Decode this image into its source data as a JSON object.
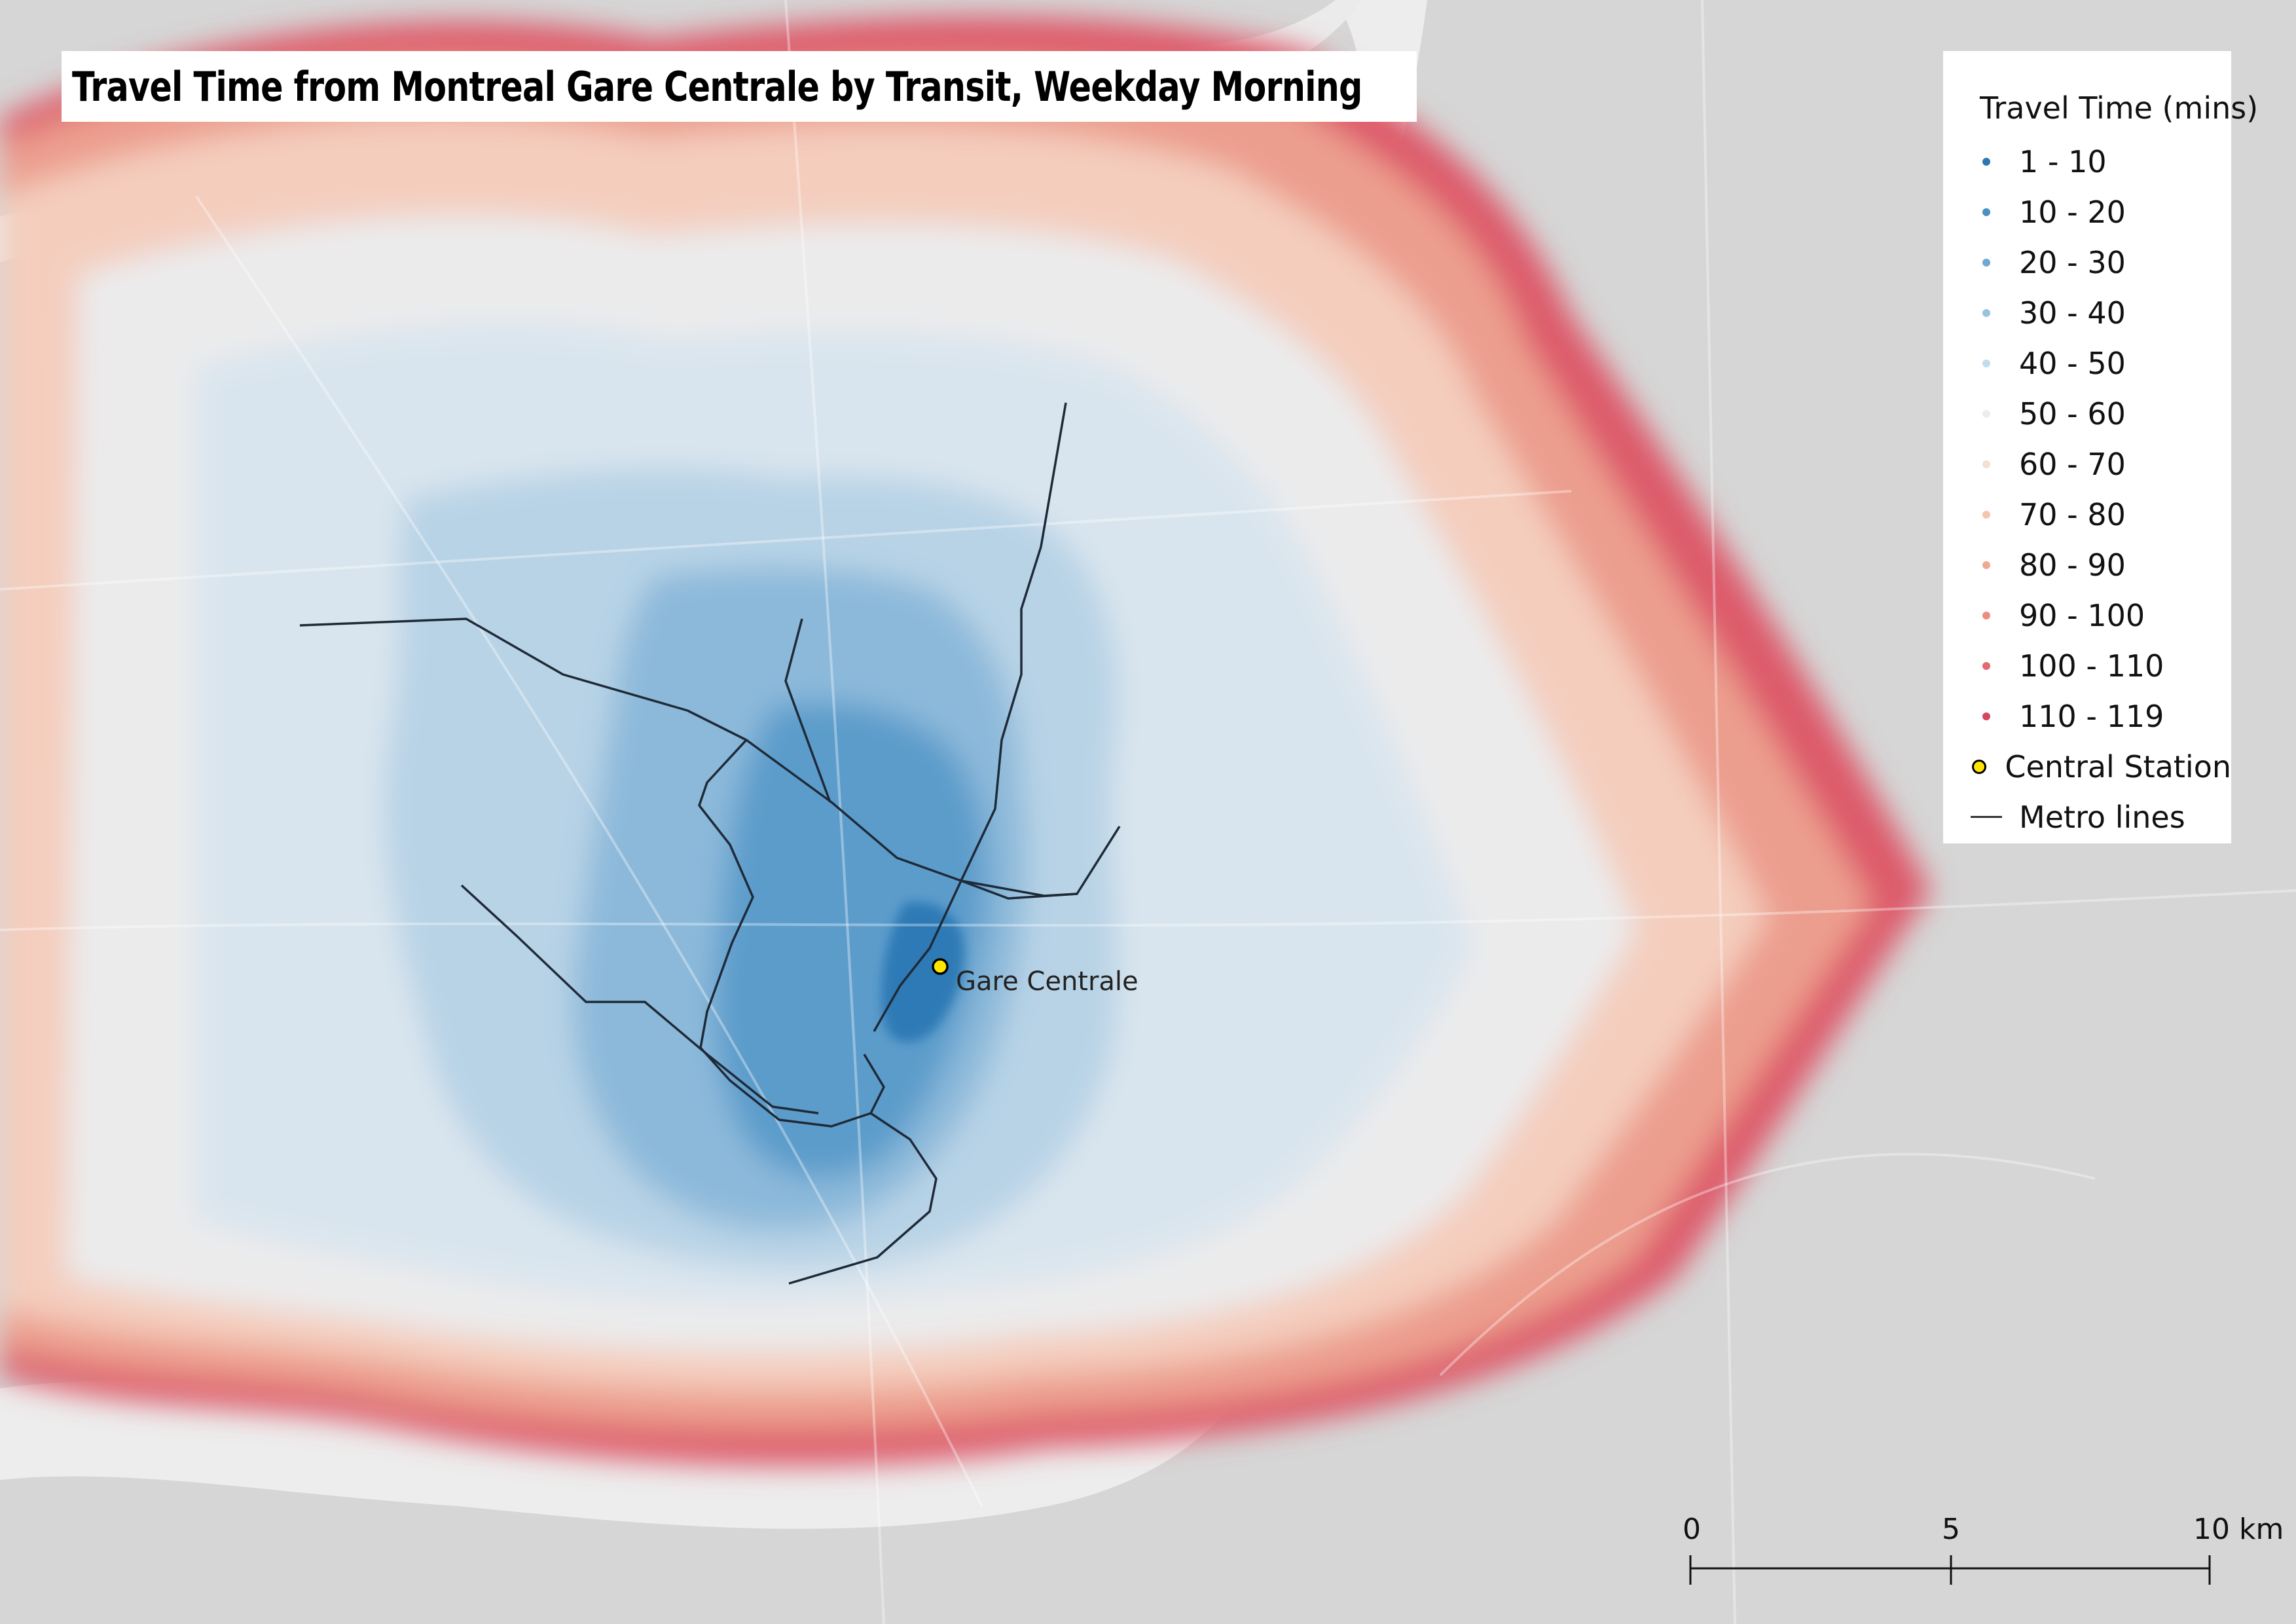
{
  "title": "Travel Time from Montreal Gare Centrale by Transit, Weekday Morning",
  "legend": {
    "title": "Travel Time (mins)",
    "items": [
      {
        "label": "1 - 10",
        "color": "#2b78b4"
      },
      {
        "label": "10 - 20",
        "color": "#4a90c2"
      },
      {
        "label": "20 - 30",
        "color": "#6fa9d1"
      },
      {
        "label": "30 - 40",
        "color": "#98c3df"
      },
      {
        "label": "40 - 50",
        "color": "#c3dcec"
      },
      {
        "label": "50 - 60",
        "color": "#eaeef1"
      },
      {
        "label": "60 - 70",
        "color": "#f6ded5"
      },
      {
        "label": "70 - 80",
        "color": "#f4c6b2"
      },
      {
        "label": "80 - 90",
        "color": "#f0aa93"
      },
      {
        "label": "90 - 100",
        "color": "#ea8f80"
      },
      {
        "label": "100 - 110",
        "color": "#e06b70"
      },
      {
        "label": "110 - 119",
        "color": "#d44660"
      }
    ],
    "station_label": "Central Station",
    "metro_label": "Metro lines"
  },
  "station": {
    "name": "Gare Centrale"
  },
  "scalebar": {
    "ticks": [
      "0",
      "5",
      "10 km"
    ]
  }
}
